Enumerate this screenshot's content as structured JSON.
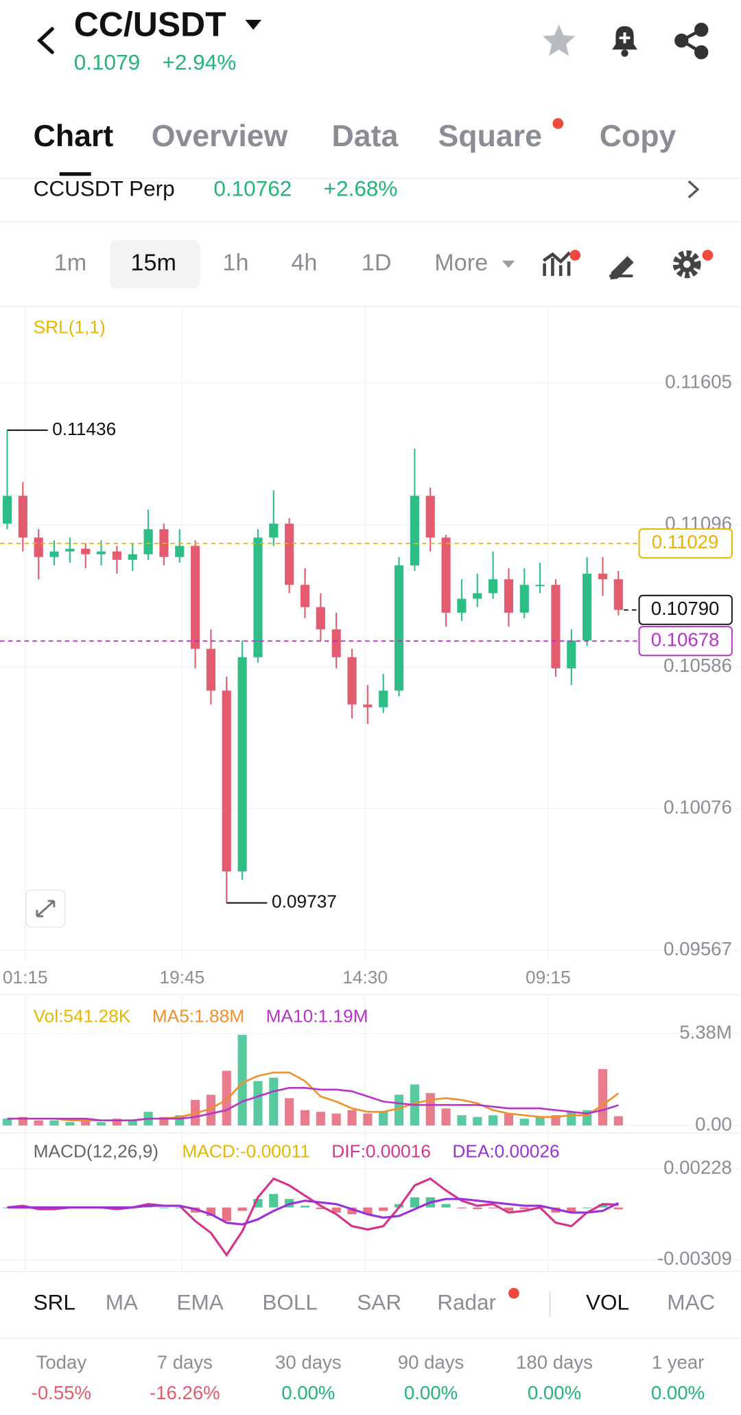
{
  "header": {
    "pair": "CC/USDT",
    "price": "0.1079",
    "change": "+2.94%"
  },
  "tabs": [
    "Chart",
    "Overview",
    "Data",
    "Square",
    "Copy"
  ],
  "contract": {
    "name": "CCUSDT Perp",
    "price": "0.10762",
    "change": "+2.68%"
  },
  "intervals": [
    "1m",
    "15m",
    "1h",
    "4h",
    "1D",
    "More"
  ],
  "indicator_tabs": [
    "SRL",
    "MA",
    "EMA",
    "BOLL",
    "SAR",
    "Radar",
    "VOL",
    "MAC"
  ],
  "performance": [
    {
      "period": "Today",
      "change": "-0.55%"
    },
    {
      "period": "7 days",
      "change": "-16.26%"
    },
    {
      "period": "30 days",
      "change": "0.00%"
    },
    {
      "period": "90 days",
      "change": "0.00%"
    },
    {
      "period": "180 days",
      "change": "0.00%"
    },
    {
      "period": "1 year",
      "change": "0.00%"
    }
  ],
  "chart_data": [
    {
      "type": "candlestick",
      "title": "SRL(1,1)",
      "x_labels": [
        "01:15",
        "19:45",
        "14:30",
        "09:15"
      ],
      "open": [
        0.111,
        0.112,
        0.1105,
        0.1098,
        0.11,
        0.1101,
        0.1099,
        0.11,
        0.1097,
        0.1099,
        0.1108,
        0.1098,
        0.1102,
        0.1065,
        0.105,
        0.0985,
        0.1062,
        0.1105,
        0.111,
        0.1088,
        0.108,
        0.1072,
        0.1062,
        0.1045,
        0.1044,
        0.105,
        0.1095,
        0.112,
        0.1105,
        0.1078,
        0.1083,
        0.1085,
        0.109,
        0.1078,
        0.1088,
        0.1088,
        0.1058,
        0.1068,
        0.1092,
        0.109
      ],
      "high": [
        0.11436,
        0.1125,
        0.1108,
        0.1104,
        0.1105,
        0.1103,
        0.1104,
        0.1102,
        0.1103,
        0.1115,
        0.111,
        0.1108,
        0.1104,
        0.1072,
        0.1055,
        0.1068,
        0.1108,
        0.1122,
        0.1112,
        0.1094,
        0.1085,
        0.1078,
        0.1065,
        0.1052,
        0.1056,
        0.1098,
        0.1137,
        0.1123,
        0.1106,
        0.109,
        0.1092,
        0.11,
        0.1094,
        0.1094,
        0.1096,
        0.109,
        0.1072,
        0.1098,
        0.1098,
        0.1093
      ],
      "low": [
        0.1108,
        0.11,
        0.109,
        0.1095,
        0.1096,
        0.1094,
        0.1095,
        0.1092,
        0.1093,
        0.1097,
        0.1095,
        0.1096,
        0.1058,
        0.1045,
        0.09737,
        0.0982,
        0.106,
        0.1102,
        0.1085,
        0.1076,
        0.1068,
        0.1058,
        0.104,
        0.1038,
        0.1042,
        0.1048,
        0.1093,
        0.11,
        0.1073,
        0.1075,
        0.108,
        0.1083,
        0.1073,
        0.1076,
        0.1085,
        0.1055,
        0.1052,
        0.1066,
        0.1084,
        0.1077
      ],
      "close": [
        0.112,
        0.1105,
        0.1098,
        0.11,
        0.1101,
        0.1099,
        0.11,
        0.1097,
        0.1099,
        0.1108,
        0.1098,
        0.1102,
        0.1065,
        0.105,
        0.0985,
        0.1062,
        0.1105,
        0.111,
        0.1088,
        0.108,
        0.1072,
        0.1062,
        0.1045,
        0.1044,
        0.105,
        0.1095,
        0.112,
        0.1105,
        0.1078,
        0.1083,
        0.1085,
        0.109,
        0.1078,
        0.1088,
        0.1088,
        0.1058,
        0.1068,
        0.1092,
        0.109,
        0.1079
      ],
      "up_color": "#2ebd85",
      "down_color": "#e35b6f",
      "ylim": [
        0.0953,
        0.1188
      ],
      "yticks": [
        0.11605,
        0.11096,
        0.10586,
        0.10076,
        0.09567
      ],
      "grid": true,
      "high_label": 0.11436,
      "low_label": 0.09737,
      "price_lines": [
        {
          "value": 0.11029,
          "color": "#e8b600"
        },
        {
          "value": 0.1079,
          "label": "0.10790",
          "color": "#111111"
        },
        {
          "value": 0.10678,
          "color": "#b634c8"
        }
      ]
    },
    {
      "type": "volume",
      "ylim": [
        0,
        5.38
      ],
      "yticks": [
        {
          "value": 5.38,
          "label": "5.38M"
        },
        {
          "value": 0,
          "label": "0.00"
        }
      ],
      "series": [
        {
          "name": "Vol:541.28K",
          "color": "#e8b600",
          "values": [
            0.4,
            0.5,
            0.3,
            0.3,
            0.2,
            0.3,
            0.2,
            0.4,
            0.3,
            0.8,
            0.5,
            0.6,
            1.5,
            1.8,
            3.2,
            5.3,
            2.6,
            2.8,
            1.6,
            0.9,
            0.8,
            0.7,
            0.9,
            0.7,
            0.8,
            1.8,
            2.4,
            1.9,
            1.0,
            0.6,
            0.5,
            0.6,
            0.7,
            0.4,
            0.5,
            0.6,
            0.8,
            0.9,
            3.3,
            0.54128
          ]
        },
        {
          "name": "MA5:1.88M",
          "color": "#f0902a",
          "values": [
            0.4,
            0.4,
            0.4,
            0.4,
            0.3,
            0.3,
            0.3,
            0.3,
            0.3,
            0.4,
            0.4,
            0.5,
            0.7,
            1.0,
            1.5,
            2.5,
            2.9,
            3.1,
            3.1,
            2.6,
            1.7,
            1.4,
            1.0,
            0.8,
            0.8,
            1.0,
            1.3,
            1.5,
            1.6,
            1.5,
            1.3,
            0.9,
            0.7,
            0.6,
            0.5,
            0.5,
            0.6,
            0.6,
            1.2,
            1.88
          ]
        },
        {
          "name": "MA10:1.19M",
          "color": "#b634c8",
          "values": [
            0.4,
            0.4,
            0.4,
            0.4,
            0.4,
            0.4,
            0.3,
            0.3,
            0.3,
            0.4,
            0.4,
            0.4,
            0.5,
            0.7,
            0.9,
            1.4,
            1.7,
            2.0,
            2.2,
            2.2,
            2.1,
            2.1,
            2.0,
            1.7,
            1.4,
            1.3,
            1.2,
            1.2,
            1.2,
            1.2,
            1.2,
            1.1,
            1.0,
            1.0,
            1.0,
            0.9,
            0.8,
            0.7,
            0.9,
            1.19
          ]
        }
      ]
    },
    {
      "type": "macd",
      "title": "MACD(12,26,9)",
      "up_color": "#2ebd85",
      "down_color": "#e35b6f",
      "ylim": [
        -0.00309,
        0.00228
      ],
      "yticks": [
        0.00228,
        -0.00309
      ],
      "series": [
        {
          "name": "MACD:-0.00011",
          "color": "#e8b600",
          "values": [
            0,
            5e-05,
            -5e-05,
            -5e-05,
            0,
            0,
            0,
            -5e-05,
            0,
            5e-05,
            0,
            0,
            -0.0003,
            -0.0005,
            -0.0008,
            -0.0002,
            0.0005,
            0.0008,
            0.0005,
            0.0001,
            -0.0001,
            -0.0003,
            -0.0004,
            -0.0004,
            -0.0002,
            0.0002,
            0.0006,
            0.0006,
            0.0002,
            -5e-05,
            -0.0001,
            -5e-05,
            -0.0002,
            -0.0001,
            -5e-05,
            -0.0003,
            -0.0003,
            0,
            0.0002,
            -0.00011
          ]
        },
        {
          "name": "DIF:0.00016",
          "color": "#d6338a",
          "values": [
            0.0,
            0.0001,
            -0.0001,
            -0.0001,
            0.0,
            0.0,
            0.0,
            -0.0001,
            0.0,
            0.0002,
            0.0001,
            0.0001,
            -0.0008,
            -0.0015,
            -0.0028,
            -0.0014,
            0.0006,
            0.0017,
            0.0013,
            0.0007,
            0.0001,
            -0.0004,
            -0.0011,
            -0.0013,
            -0.0011,
            0.0,
            0.0013,
            0.0017,
            0.001,
            0.0004,
            0.0001,
            0.0002,
            -0.0003,
            -0.0002,
            0.0,
            -0.0009,
            -0.0011,
            -0.0003,
            0.0002,
            0.00016
          ]
        },
        {
          "name": "DEA:0.00026",
          "color": "#9b30d9",
          "values": [
            0.0,
            0.0,
            0.0,
            0.0,
            0.0,
            0.0,
            0.0,
            0.0,
            0.0,
            0.0001,
            0.0001,
            0.0001,
            -0.0001,
            -0.0004,
            -0.0009,
            -0.001,
            -0.0007,
            -0.0002,
            0.0002,
            0.0004,
            0.0003,
            0.0002,
            -0.0001,
            -0.0004,
            -0.0006,
            -0.0005,
            -0.0001,
            0.0003,
            0.0005,
            0.0005,
            0.0004,
            0.0003,
            0.0002,
            0.0001,
            0.0001,
            -0.0001,
            -0.0003,
            -0.0003,
            -0.0002,
            0.00026
          ]
        }
      ]
    }
  ]
}
